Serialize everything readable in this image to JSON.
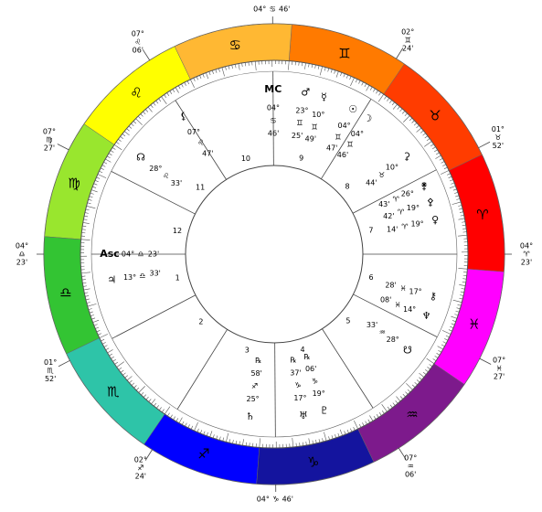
{
  "signs": [
    "♈",
    "♉",
    "♊",
    "♋",
    "♌",
    "♍",
    "♎",
    "♏",
    "♐",
    "♑",
    "♒",
    "♓"
  ],
  "houses": [
    "1",
    "2",
    "3",
    "4",
    "5",
    "6",
    "7",
    "8",
    "9",
    "10",
    "11",
    "12"
  ],
  "cusps": [
    {
      "deg": "04°",
      "sign": "♎",
      "min": "23'"
    },
    {
      "deg": "01°",
      "sign": "♏",
      "min": "52'"
    },
    {
      "deg": "02°",
      "sign": "♐",
      "min": "24'"
    },
    {
      "deg": "04°",
      "sign": "♑",
      "min": "46'"
    },
    {
      "deg": "07°",
      "sign": "♒",
      "min": "06'"
    },
    {
      "deg": "07°",
      "sign": "♓",
      "min": "27'"
    },
    {
      "deg": "04°",
      "sign": "♈",
      "min": "23'"
    },
    {
      "deg": "01°",
      "sign": "♉",
      "min": "52'"
    },
    {
      "deg": "02°",
      "sign": "♊",
      "min": "24'"
    },
    {
      "deg": "04°",
      "sign": "♋",
      "min": "46'"
    },
    {
      "deg": "07°",
      "sign": "♌",
      "min": "06'"
    },
    {
      "deg": "07°",
      "sign": "♍",
      "min": "27'"
    }
  ],
  "points": [
    {
      "glyph": "MC",
      "deg": "04°",
      "sign": "♋",
      "min": "46'"
    },
    {
      "glyph": "♂",
      "deg": "23°",
      "sign": "♊",
      "min": "25'"
    },
    {
      "glyph": "☿",
      "deg": "10°",
      "sign": "♊",
      "min": "49'"
    },
    {
      "glyph": "☉",
      "deg": "04°",
      "sign": "♊",
      "min": "47'"
    },
    {
      "glyph": "☽",
      "deg": "04°",
      "sign": "♊",
      "min": "46'"
    },
    {
      "glyph": "⚸",
      "deg": "07°",
      "sign": "♌",
      "min": "47'"
    },
    {
      "glyph": "☊",
      "deg": "28°",
      "sign": "♌",
      "min": "33'"
    },
    {
      "glyph": "Asc",
      "deg": "04°",
      "sign": "♎",
      "min": "23'"
    },
    {
      "glyph": "♃",
      "deg": "13°",
      "sign": "♎",
      "min": "33'"
    },
    {
      "glyph": "♄",
      "deg": "25°",
      "sign": "♐",
      "min": "58'",
      "retro": "℞"
    },
    {
      "glyph": "♅",
      "deg": "17°",
      "sign": "♑",
      "min": "37'",
      "retro": "℞"
    },
    {
      "glyph": "♇",
      "deg": "19°",
      "sign": "♑",
      "min": "06'",
      "retro": "℞"
    },
    {
      "glyph": "☋",
      "deg": "28°",
      "sign": "♒",
      "min": "33'"
    },
    {
      "glyph": "⚷",
      "deg": "17°",
      "sign": "♓",
      "min": "28'"
    },
    {
      "glyph": "♆",
      "deg": "14°",
      "sign": "♓",
      "min": "08'"
    },
    {
      "glyph": "⚵",
      "deg": "26°",
      "sign": "♈",
      "min": "43'"
    },
    {
      "glyph": "⚴",
      "deg": "19°",
      "sign": "♈",
      "min": "42'"
    },
    {
      "glyph": "♀",
      "deg": "19°",
      "sign": "♈",
      "min": "14'"
    },
    {
      "glyph": "⚳",
      "deg": "10°",
      "sign": "♉",
      "min": "44'"
    }
  ]
}
